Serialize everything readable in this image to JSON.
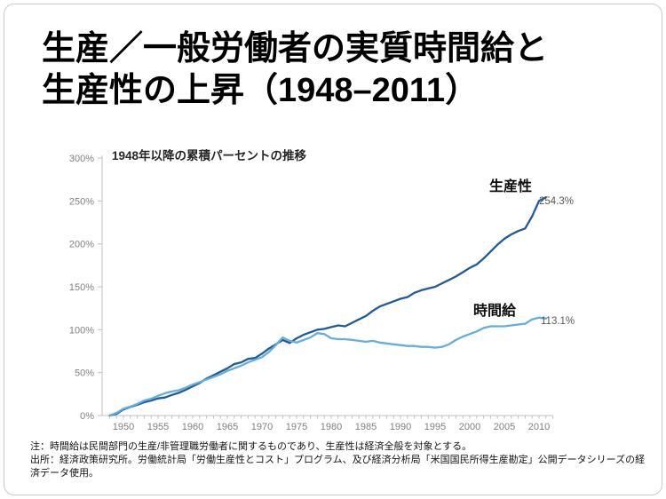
{
  "slide": {
    "title_line1": "生産／一般労働者の実質時間給と",
    "title_line2": "生産性の上昇（1948–2011）",
    "note_line1": "注：時間給は民間部門の生産/非管理職労働者に関するものであり、生産性は経済全般を対象とする。",
    "note_line2": "出所：経済政策研究所。労働統計局「労働生産性とコスト」プログラム、及び経済分析局「米国国民所得生産勘定」公開データシリーズの経済データ使用。"
  },
  "chart_data": {
    "type": "line",
    "title": "1948年以降の累積パーセントの推移",
    "xlabel": "",
    "ylabel": "",
    "x_start_year": 1948,
    "x_end_year": 2011,
    "x_tick_years": [
      1950,
      1955,
      1960,
      1965,
      1970,
      1975,
      1980,
      1985,
      1990,
      1995,
      2000,
      2005,
      2010
    ],
    "y_ticks_percent": [
      0,
      50,
      100,
      150,
      200,
      250,
      300
    ],
    "ylim": [
      0,
      300
    ],
    "grid": false,
    "legend_position": "inline-labels",
    "axis_color": "#bfbfbf",
    "tick_label_color": "#808080",
    "series": [
      {
        "name": "生産性",
        "color": "#1f5b99",
        "end_label": "254.3%",
        "end_value": 254.3,
        "values": [
          0,
          2,
          7,
          10,
          12.5,
          15.5,
          17.5,
          20,
          21,
          24,
          26.5,
          30,
          34,
          38,
          43,
          47,
          51,
          55,
          60,
          62,
          66,
          67,
          72,
          78,
          83,
          88,
          84.5,
          90,
          94,
          97,
          100,
          101,
          103,
          105,
          104,
          108,
          112,
          116,
          122,
          127,
          130,
          133,
          136,
          138,
          143,
          146,
          148,
          150,
          154,
          158,
          162,
          167,
          172,
          176,
          183,
          191,
          199,
          206,
          211,
          215,
          218,
          232,
          250,
          254.3
        ]
      },
      {
        "name": "時間給",
        "color": "#63aede",
        "end_label": "113.1%",
        "end_value": 113.1,
        "values": [
          0,
          3,
          8,
          10.5,
          13.5,
          17.5,
          19.5,
          23,
          26,
          28,
          29.5,
          32.5,
          36,
          39,
          42,
          45,
          48,
          52,
          55,
          58,
          62,
          65,
          68,
          74,
          82,
          91,
          87,
          85,
          88,
          91,
          96,
          95,
          90,
          89,
          89,
          88,
          87,
          86,
          87,
          85,
          84,
          83,
          82,
          81,
          81,
          80,
          80,
          79,
          80,
          83,
          88,
          92,
          95,
          98,
          102,
          104,
          104,
          104,
          105,
          106,
          107,
          112,
          114,
          113.1
        ]
      }
    ]
  }
}
